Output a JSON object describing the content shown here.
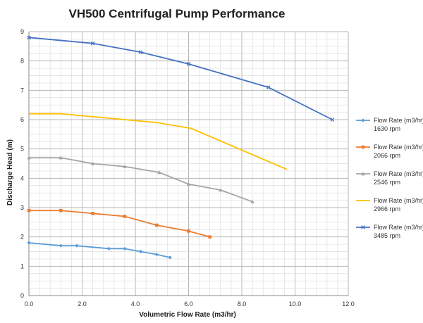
{
  "chart_data": {
    "type": "line",
    "title": "VH500 Centrifugal Pump Performance",
    "xlabel": "Volumetric Flow Rate (m3/hr)",
    "ylabel": "Discharge Head (m)",
    "xlim": [
      0,
      12
    ],
    "ylim": [
      0,
      9
    ],
    "x_ticks": [
      "0.0",
      "2.0",
      "4.0",
      "6.0",
      "8.0",
      "10.0",
      "12.0"
    ],
    "y_ticks": [
      "0",
      "1",
      "2",
      "3",
      "4",
      "5",
      "6",
      "7",
      "8",
      "9"
    ],
    "grid": true,
    "legend_position": "right",
    "series": [
      {
        "name": "Flow Rate (m3/hr)",
        "speed": "1630 rpm",
        "color": "#5b9bd5",
        "marker": "diamond",
        "points": [
          [
            0,
            1.8
          ],
          [
            1.2,
            1.7
          ],
          [
            1.8,
            1.7
          ],
          [
            3.0,
            1.6
          ],
          [
            3.6,
            1.6
          ],
          [
            4.2,
            1.5
          ],
          [
            4.8,
            1.4
          ],
          [
            5.3,
            1.3
          ]
        ]
      },
      {
        "name": "Flow Rate (m3/hr)",
        "speed": "2066 rpm",
        "color": "#ed7d31",
        "marker": "square",
        "points": [
          [
            0,
            2.9
          ],
          [
            1.2,
            2.9
          ],
          [
            2.4,
            2.8
          ],
          [
            3.6,
            2.7
          ],
          [
            4.8,
            2.4
          ],
          [
            6.0,
            2.2
          ],
          [
            6.8,
            2.0
          ]
        ]
      },
      {
        "name": "Flow Rate (m3/hr)",
        "speed": "2546 rpm",
        "color": "#a5a5a5",
        "marker": "triangle",
        "points": [
          [
            0,
            4.7
          ],
          [
            1.2,
            4.7
          ],
          [
            2.4,
            4.5
          ],
          [
            3.6,
            4.4
          ],
          [
            4.9,
            4.2
          ],
          [
            6.0,
            3.8
          ],
          [
            7.2,
            3.6
          ],
          [
            8.4,
            3.2
          ]
        ]
      },
      {
        "name": "Flow Rate (m3/hr)",
        "speed": "2966 rpm",
        "color": "#ffc000",
        "marker": "none",
        "points": [
          [
            0,
            6.2
          ],
          [
            1.2,
            6.2
          ],
          [
            2.4,
            6.1
          ],
          [
            3.6,
            6.0
          ],
          [
            4.8,
            5.9
          ],
          [
            6.1,
            5.7
          ],
          [
            9.7,
            4.3
          ]
        ]
      },
      {
        "name": "Flow Rate (m3/hr)",
        "speed": "3485 rpm",
        "color": "#4472c4",
        "marker": "x",
        "points": [
          [
            0,
            8.8
          ],
          [
            2.4,
            8.6
          ],
          [
            4.2,
            8.3
          ],
          [
            6.0,
            7.9
          ],
          [
            9.0,
            7.1
          ],
          [
            11.4,
            6.0
          ]
        ]
      }
    ]
  }
}
